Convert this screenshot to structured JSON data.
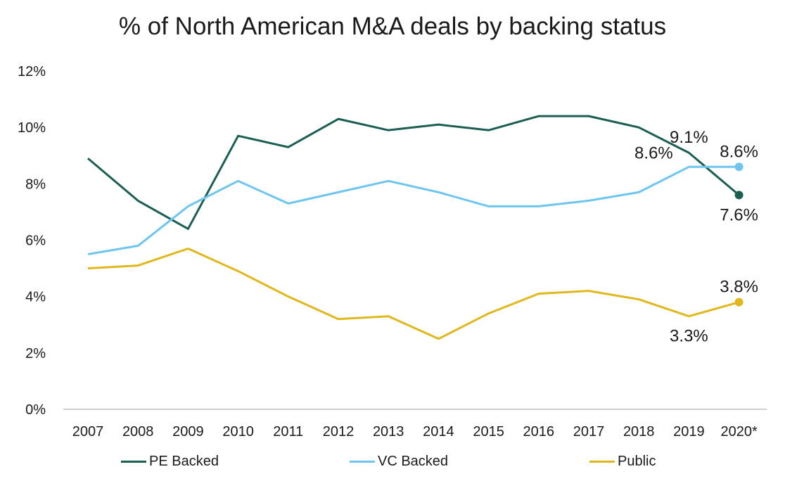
{
  "chart_data": {
    "type": "line",
    "title": "% of North American M&A deals by backing status",
    "categories": [
      "2007",
      "2008",
      "2009",
      "2010",
      "2011",
      "2012",
      "2013",
      "2014",
      "2015",
      "2016",
      "2017",
      "2018",
      "2019",
      "2020*"
    ],
    "ylim": [
      0,
      12
    ],
    "ytick_labels": [
      "0%",
      "2%",
      "4%",
      "6%",
      "8%",
      "10%",
      "12%"
    ],
    "grid": false,
    "legend_position": "bottom",
    "series": [
      {
        "name": "PE Backed",
        "color": "#1b5e52",
        "values": [
          8.9,
          7.4,
          6.4,
          9.7,
          9.3,
          10.3,
          9.9,
          10.1,
          9.9,
          10.4,
          10.4,
          10.0,
          9.1,
          7.6
        ],
        "labels": [
          {
            "index": 12,
            "text": "9.1%",
            "position": "above"
          },
          {
            "index": 13,
            "text": "7.6%",
            "position": "below"
          }
        ]
      },
      {
        "name": "VC Backed",
        "color": "#6ec6f0",
        "values": [
          5.5,
          5.8,
          7.2,
          8.1,
          7.3,
          7.7,
          8.1,
          7.7,
          7.2,
          7.2,
          7.4,
          7.7,
          8.6,
          8.6
        ],
        "labels": [
          {
            "index": 12,
            "text": "8.6%",
            "position": "above-left"
          },
          {
            "index": 13,
            "text": "8.6%",
            "position": "above"
          }
        ]
      },
      {
        "name": "Public",
        "color": "#e1b81b",
        "values": [
          5.0,
          5.1,
          5.7,
          4.9,
          4.0,
          3.2,
          3.3,
          2.5,
          3.4,
          4.1,
          4.2,
          3.9,
          3.3,
          3.8
        ],
        "labels": [
          {
            "index": 12,
            "text": "3.3%",
            "position": "below"
          },
          {
            "index": 13,
            "text": "3.8%",
            "position": "above"
          }
        ]
      }
    ]
  }
}
